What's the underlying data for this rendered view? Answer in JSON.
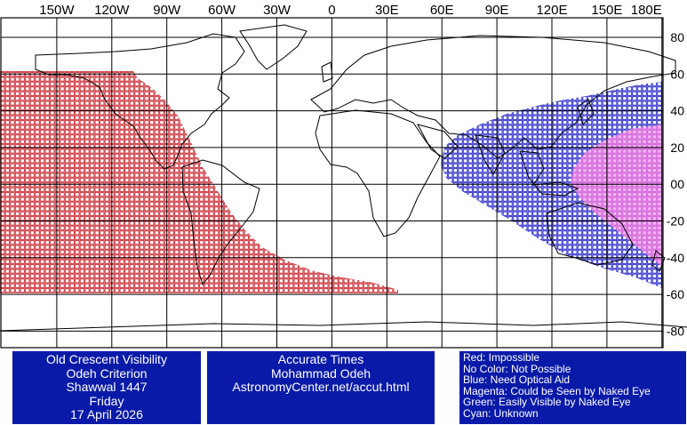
{
  "map": {
    "lon_labels": [
      "150W",
      "120W",
      "90W",
      "60W",
      "30W",
      "0",
      "30E",
      "60E",
      "90E",
      "120E",
      "150E",
      "180E"
    ],
    "lat_labels": [
      "80",
      "60",
      "40",
      "20",
      "00",
      "-20",
      "-40",
      "-60",
      "-80"
    ],
    "colors": {
      "impossible": "#c8202a",
      "optical_aid": "#2020c8",
      "naked_eye": "#e080e0",
      "grid": "#000000",
      "coast": "#000000"
    }
  },
  "title_panel": {
    "line1": "Old Crescent Visibility",
    "line2": "Odeh Criterion",
    "line3": "Shawwal 1447",
    "line4": "Friday",
    "line5": "17 April 2026"
  },
  "credit_panel": {
    "line1": "Accurate Times",
    "line2": "Mohammad Odeh",
    "line3": "AstronomyCenter.net/accut.html"
  },
  "legend": {
    "red": "Red: Impossible",
    "none": "No Color: Not Possible",
    "blue": "Blue: Need Optical Aid",
    "magenta": "Magenta: Could be Seen by Naked Eye",
    "green": "Green: Easily Visible by Naked Eye",
    "cyan": "Cyan: Unknown"
  },
  "panel_color": "#0a1aa8"
}
